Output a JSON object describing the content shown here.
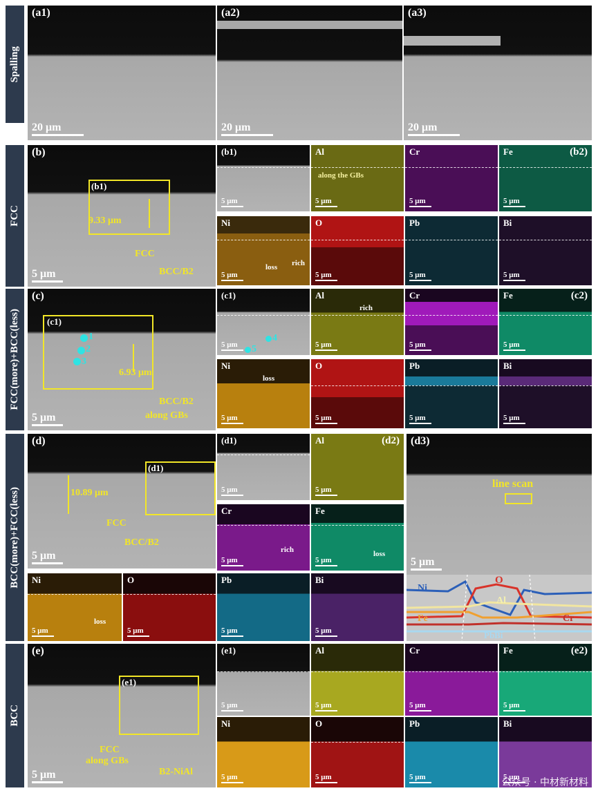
{
  "rows": {
    "spalling": "Spalling",
    "fcc": "FCC",
    "fcc_more_bcc_less": "FCC(more)+BCC(less)",
    "bcc_more_fcc_less": "BCC(more)+FCC(less)",
    "bcc": "BCC"
  },
  "panels": {
    "a1": "(a1)",
    "a2": "(a2)",
    "a3": "(a3)",
    "b": "(b)",
    "b1": "(b1)",
    "b2": "(b2)",
    "c": "(c)",
    "c1": "(c1)",
    "c2": "(c2)",
    "d": "(d)",
    "d1": "(d1)",
    "d2": "(d2)",
    "d3": "(d3)",
    "e": "(e)",
    "e1": "(e1)",
    "e2": "(e2)"
  },
  "elements": {
    "al": "Al",
    "cr": "Cr",
    "fe": "Fe",
    "ni": "Ni",
    "o": "O",
    "pb": "Pb",
    "bi": "Bi"
  },
  "scale": {
    "s20": "20 μm",
    "s5": "5 μm"
  },
  "annotations": {
    "b_thickness": "9.33 μm",
    "b_fcc": "FCC",
    "b_bccb2": "BCC/B2",
    "b_gbs": "along the GBs",
    "b_loss": "loss",
    "b_rich": "rich",
    "c_thickness": "6.93 μm",
    "c_bccb2": "BCC/B2",
    "c_along": "along GBs",
    "c_rich": "rich",
    "c_loss": "loss",
    "c_points": [
      "1",
      "2",
      "3",
      "4",
      "5"
    ],
    "d_thickness": "10.89 μm",
    "d_fcc": "FCC",
    "d_bccb2": "BCC/B2",
    "d_rich": "rich",
    "d_loss": "loss",
    "d_linescan": "line scan",
    "e_fcc": "FCC",
    "e_along": "along GBs",
    "e_b2": "B2-NiAl"
  },
  "line_scan": {
    "labels": {
      "ni": "Ni",
      "o": "O",
      "al": "Al",
      "fe": "Fe",
      "cr": "Cr",
      "pbbi": "PbBi"
    },
    "colors": {
      "ni": "#2b5fb8",
      "o": "#d8332a",
      "al": "#f2e6a0",
      "fe": "#f0a030",
      "cr": "#c0302a",
      "pbbi": "#a9d8f0"
    }
  },
  "map_colors": {
    "al": "#a8a820",
    "cr": "#8a1a9a",
    "fe": "#18a878",
    "ni": "#d89a18",
    "o": "#c01818",
    "pb": "#1a7a9a",
    "bi": "#6a2a8a"
  },
  "watermark": "公众号 · 中材新材料"
}
